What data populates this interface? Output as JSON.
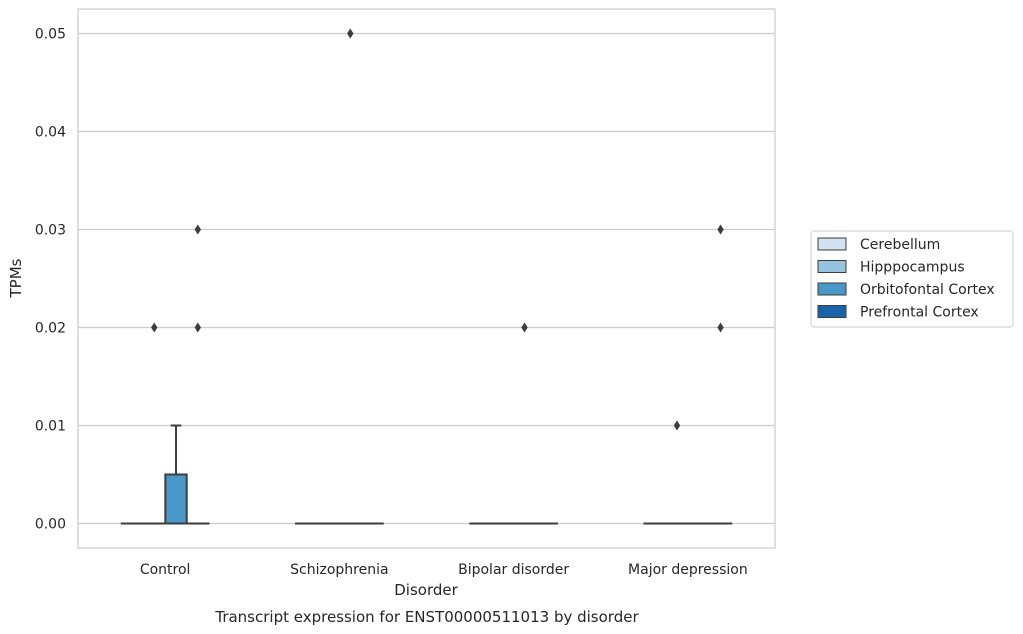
{
  "chart_data": {
    "type": "box",
    "caption": "Transcript expression for ENST00000511013 by disorder",
    "xlabel": "Disorder",
    "ylabel": "TPMs",
    "categories": [
      "Control",
      "Schizophrenia",
      "Bipolar disorder",
      "Major depression"
    ],
    "ylim": [
      -0.0025,
      0.0525
    ],
    "yticks": [
      0.0,
      0.01,
      0.02,
      0.03,
      0.04,
      0.05
    ],
    "ytick_labels": [
      "0.00",
      "0.01",
      "0.02",
      "0.03",
      "0.04",
      "0.05"
    ],
    "grid": true,
    "legend_position": "right",
    "series": [
      {
        "name": "Cerebellum",
        "color": "#d0e1f2",
        "boxes": [
          {
            "q1": 0,
            "median": 0,
            "q3": 0,
            "whislo": 0,
            "whishi": 0,
            "fliers": []
          },
          {
            "q1": 0,
            "median": 0,
            "q3": 0,
            "whislo": 0,
            "whishi": 0,
            "fliers": []
          },
          {
            "q1": 0,
            "median": 0,
            "q3": 0,
            "whislo": 0,
            "whishi": 0,
            "fliers": []
          },
          {
            "q1": 0,
            "median": 0,
            "q3": 0,
            "whislo": 0,
            "whishi": 0,
            "fliers": []
          }
        ]
      },
      {
        "name": "Hipppocampus",
        "color": "#94c4df",
        "boxes": [
          {
            "q1": 0,
            "median": 0,
            "q3": 0,
            "whislo": 0,
            "whishi": 0,
            "fliers": [
              0.02
            ]
          },
          {
            "q1": 0,
            "median": 0,
            "q3": 0,
            "whislo": 0,
            "whishi": 0,
            "fliers": []
          },
          {
            "q1": 0,
            "median": 0,
            "q3": 0,
            "whislo": 0,
            "whishi": 0,
            "fliers": []
          },
          {
            "q1": 0,
            "median": 0,
            "q3": 0,
            "whislo": 0,
            "whishi": 0,
            "fliers": [
              0.01
            ]
          }
        ]
      },
      {
        "name": "Orbitofontal Cortex",
        "color": "#4a98c9",
        "boxes": [
          {
            "q1": 0,
            "median": 0,
            "q3": 0.005,
            "whislo": 0,
            "whishi": 0.01,
            "fliers": []
          },
          {
            "q1": 0,
            "median": 0,
            "q3": 0,
            "whislo": 0,
            "whishi": 0,
            "fliers": [
              0.05
            ]
          },
          {
            "q1": 0,
            "median": 0,
            "q3": 0,
            "whislo": 0,
            "whishi": 0,
            "fliers": [
              0.02
            ]
          },
          {
            "q1": 0,
            "median": 0,
            "q3": 0,
            "whislo": 0,
            "whishi": 0,
            "fliers": []
          }
        ]
      },
      {
        "name": "Prefrontal Cortex",
        "color": "#1764ab",
        "boxes": [
          {
            "q1": 0,
            "median": 0,
            "q3": 0,
            "whislo": 0,
            "whishi": 0,
            "fliers": [
              0.02,
              0.03
            ]
          },
          {
            "q1": 0,
            "median": 0,
            "q3": 0,
            "whislo": 0,
            "whishi": 0,
            "fliers": []
          },
          {
            "q1": 0,
            "median": 0,
            "q3": 0,
            "whislo": 0,
            "whishi": 0,
            "fliers": []
          },
          {
            "q1": 0,
            "median": 0,
            "q3": 0,
            "whislo": 0,
            "whishi": 0,
            "fliers": [
              0.02,
              0.03
            ]
          }
        ]
      }
    ]
  }
}
